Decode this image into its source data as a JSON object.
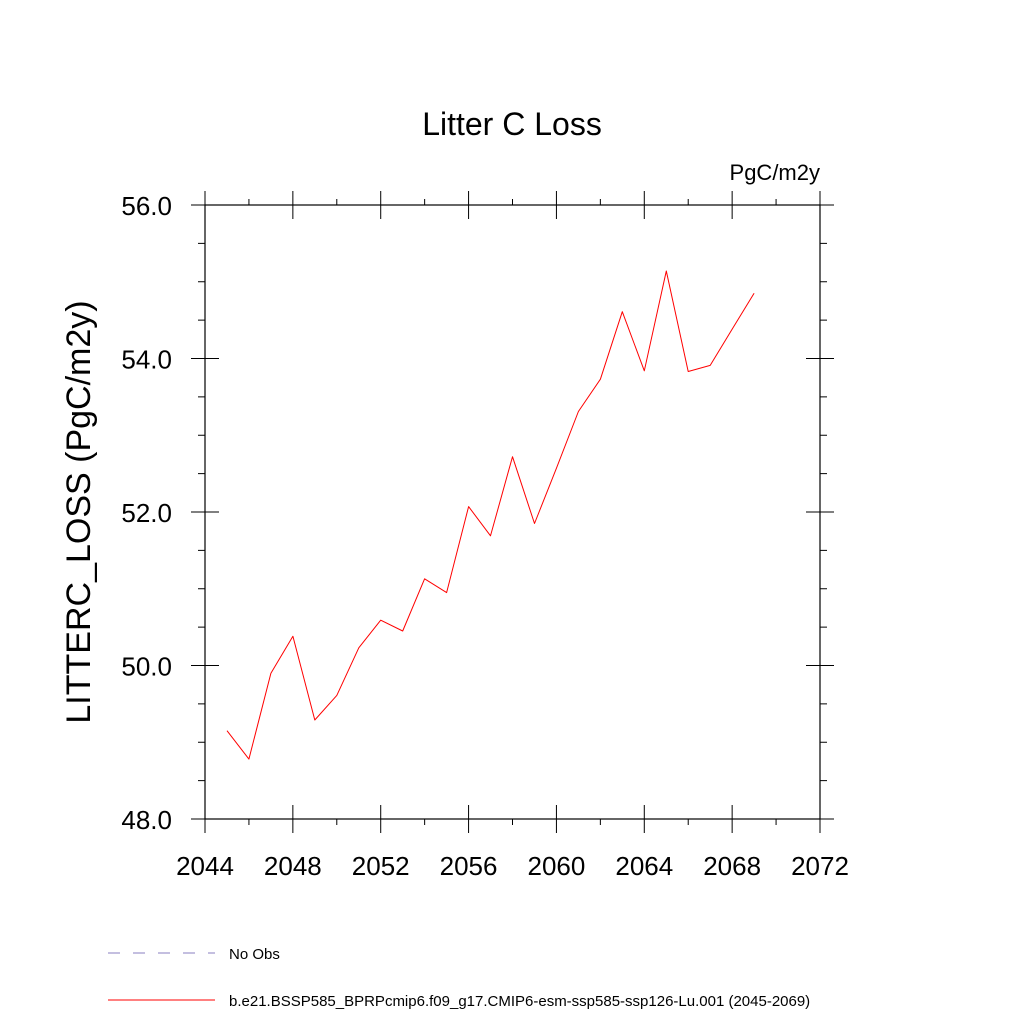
{
  "chart_data": {
    "type": "line",
    "title": "Litter C Loss",
    "units": "PgC/m2y",
    "xlabel": "",
    "ylabel": "LITTERC_LOSS  (PgC/m2y)",
    "xlim": [
      2044,
      2072
    ],
    "ylim": [
      48.0,
      56.0
    ],
    "x_ticks": [
      2044,
      2048,
      2052,
      2056,
      2060,
      2064,
      2068,
      2072
    ],
    "x_tick_labels": [
      "2044",
      "2048",
      "2052",
      "2056",
      "2060",
      "2064",
      "2068",
      "2072"
    ],
    "x_minor_step": 2,
    "y_ticks": [
      48.0,
      50.0,
      52.0,
      54.0,
      56.0
    ],
    "y_tick_labels": [
      "48.0",
      "50.0",
      "52.0",
      "54.0",
      "56.0"
    ],
    "y_minor_step": 0.5,
    "grid": false,
    "legend_position": "bottom-left, below plot",
    "series": [
      {
        "name": "No Obs",
        "color": "#8a7fc0",
        "style": "dashed",
        "x": [],
        "values": []
      },
      {
        "name": "b.e21.BSSP585_BPRPcmip6.f09_g17.CMIP6-esm-ssp585-ssp126-Lu.001 (2045-2069)",
        "color": "#ff0000",
        "style": "solid",
        "x": [
          2045,
          2046,
          2047,
          2048,
          2049,
          2050,
          2051,
          2052,
          2053,
          2054,
          2055,
          2056,
          2057,
          2058,
          2059,
          2060,
          2061,
          2062,
          2063,
          2064,
          2065,
          2066,
          2067,
          2068,
          2069
        ],
        "values": [
          49.15,
          48.78,
          49.9,
          50.38,
          49.29,
          49.61,
          50.23,
          50.59,
          50.45,
          51.13,
          50.95,
          52.07,
          51.69,
          52.72,
          51.85,
          52.57,
          53.31,
          53.73,
          54.61,
          53.84,
          55.14,
          53.83,
          53.91,
          54.38,
          54.85
        ]
      }
    ]
  }
}
